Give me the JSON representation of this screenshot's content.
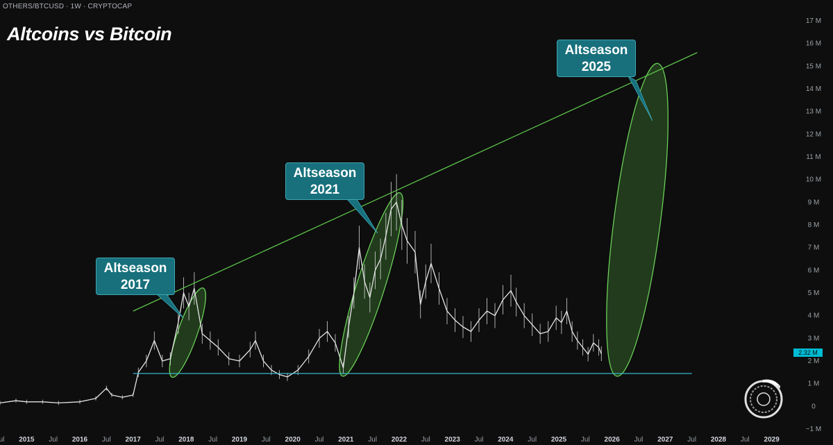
{
  "header": {
    "symbol": "OTHERS/BTCUSD · 1W · CRYPTOCAP",
    "title": "Altcoins vs Bitcoin"
  },
  "callouts": [
    {
      "line1": "Altseason",
      "line2": "2017"
    },
    {
      "line1": "Altseason",
      "line2": "2021"
    },
    {
      "line1": "Altseason",
      "line2": "2025"
    }
  ],
  "price_label": "2.32 M",
  "colors": {
    "background": "#0e0e0e",
    "candles": "#e6e6e6",
    "trendline": "#5cc24a",
    "support": "#35b8c9",
    "ellipse_fill": "#25431f",
    "ellipse_stroke": "#6ccf5a",
    "callout_bg": "#17707c",
    "price_badge": "#00bcd4"
  },
  "logo": "ouroboros-logo",
  "chart_data": {
    "type": "line",
    "title": "Altcoins vs Bitcoin",
    "xlabel": "",
    "ylabel": "",
    "y_unit": "M",
    "ylim": [
      -1,
      17
    ],
    "y_ticks": [
      "17 M",
      "16 M",
      "15 M",
      "14 M",
      "13 M",
      "12 M",
      "11 M",
      "10 M",
      "9 M",
      "8 M",
      "7 M",
      "6 M",
      "5 M",
      "4 M",
      "3 M",
      "2 M",
      "1 M",
      "0",
      "−1 M"
    ],
    "y_tick_values": [
      17,
      16,
      15,
      14,
      13,
      12,
      11,
      10,
      9,
      8,
      7,
      6,
      5,
      4,
      3,
      2,
      1,
      0,
      -1
    ],
    "xlim": [
      2014.5,
      2029.5
    ],
    "x_tick_labels": [
      "Jul",
      "2015",
      "Jul",
      "2016",
      "Jul",
      "2017",
      "Jul",
      "2018",
      "Jul",
      "2019",
      "Jul",
      "2020",
      "Jul",
      "2021",
      "Jul",
      "2022",
      "Jul",
      "2023",
      "Jul",
      "2024",
      "Jul",
      "2025",
      "Jul",
      "2026",
      "Jul",
      "2027",
      "Jul",
      "2028",
      "Jul",
      "2029"
    ],
    "x_tick_values": [
      2014.5,
      2015,
      2015.5,
      2016,
      2016.5,
      2017,
      2017.5,
      2018,
      2018.5,
      2019,
      2019.5,
      2020,
      2020.5,
      2021,
      2021.5,
      2022,
      2022.5,
      2023,
      2023.5,
      2024,
      2024.5,
      2025,
      2025.5,
      2026,
      2026.5,
      2027,
      2027.5,
      2028,
      2028.5,
      2029
    ],
    "grid": false,
    "price_series": {
      "x": [
        2014.5,
        2014.8,
        2015.0,
        2015.3,
        2015.6,
        2016.0,
        2016.3,
        2016.5,
        2016.6,
        2016.8,
        2017.0,
        2017.1,
        2017.25,
        2017.4,
        2017.55,
        2017.7,
        2017.85,
        2017.95,
        2018.05,
        2018.15,
        2018.3,
        2018.45,
        2018.6,
        2018.8,
        2019.0,
        2019.2,
        2019.3,
        2019.45,
        2019.6,
        2019.75,
        2019.9,
        2020.1,
        2020.3,
        2020.5,
        2020.65,
        2020.8,
        2020.95,
        2021.05,
        2021.15,
        2021.25,
        2021.35,
        2021.45,
        2021.55,
        2021.65,
        2021.75,
        2021.85,
        2021.95,
        2022.05,
        2022.15,
        2022.3,
        2022.4,
        2022.5,
        2022.6,
        2022.75,
        2022.9,
        2023.05,
        2023.2,
        2023.35,
        2023.5,
        2023.65,
        2023.8,
        2023.95,
        2024.1,
        2024.2,
        2024.35,
        2024.5,
        2024.65,
        2024.8,
        2024.95,
        2025.05,
        2025.15,
        2025.25,
        2025.35,
        2025.45,
        2025.55,
        2025.65,
        2025.75,
        2025.8
      ],
      "values": [
        0.15,
        0.25,
        0.2,
        0.2,
        0.15,
        0.2,
        0.35,
        0.8,
        0.5,
        0.4,
        0.5,
        1.5,
        2.0,
        2.9,
        2.0,
        2.1,
        3.7,
        5.0,
        4.4,
        5.2,
        3.2,
        2.9,
        2.6,
        2.1,
        2.0,
        2.5,
        2.9,
        2.0,
        1.6,
        1.4,
        1.3,
        1.6,
        2.2,
        3.0,
        3.3,
        2.8,
        1.7,
        3.5,
        5.0,
        7.0,
        5.5,
        4.8,
        6.0,
        6.5,
        7.5,
        8.7,
        9.0,
        8.0,
        7.3,
        6.8,
        4.5,
        5.5,
        6.3,
        5.2,
        4.2,
        3.8,
        3.5,
        3.3,
        3.8,
        4.2,
        4.0,
        4.7,
        5.1,
        4.6,
        4.0,
        3.6,
        3.2,
        3.3,
        3.9,
        3.7,
        4.2,
        3.3,
        2.9,
        2.6,
        2.3,
        2.8,
        2.6,
        2.32
      ]
    },
    "trendline": {
      "x": [
        2017.0,
        2027.6
      ],
      "values": [
        4.2,
        15.6
      ]
    },
    "support": {
      "x": [
        2017.0,
        2027.5
      ],
      "values": [
        1.45,
        1.45
      ]
    },
    "highlights": [
      {
        "label": "Altseason 2017",
        "x": [
          2017.75,
          2018.3
        ],
        "values": [
          1.4,
          5.1
        ]
      },
      {
        "label": "Altseason 2021",
        "x": [
          2020.95,
          2022.0
        ],
        "values": [
          1.45,
          9.3
        ]
      },
      {
        "label": "Altseason 2025",
        "x": [
          2026.1,
          2026.85
        ],
        "values": [
          1.45,
          15.0
        ]
      }
    ],
    "last_price": 2.32
  }
}
